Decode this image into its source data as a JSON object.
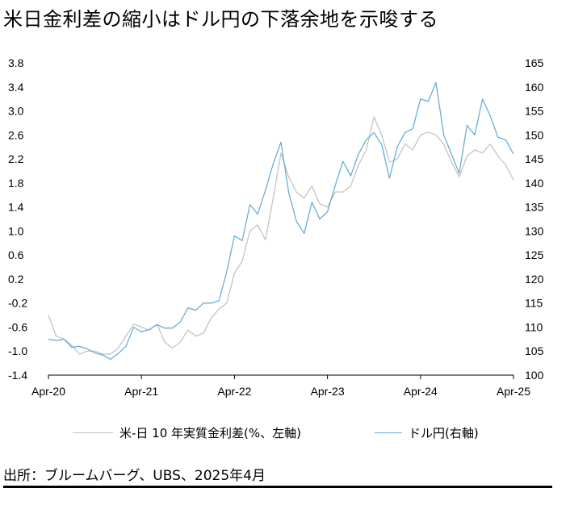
{
  "title": "米日金利差の縮小はドル円の下落余地を示唆する",
  "source": "出所：ブルームバーグ、UBS、2025年4月",
  "chart_data": {
    "type": "line",
    "title": "米日金利差の縮小はドル円の下落余地を示唆する",
    "x_ticks": [
      "Apr-20",
      "Apr-21",
      "Apr-22",
      "Apr-23",
      "Apr-24",
      "Apr-25"
    ],
    "x_range": [
      "2020-04",
      "2025-04"
    ],
    "left_axis": {
      "ticks": [
        "3.8",
        "3.4",
        "3.0",
        "2.6",
        "2.2",
        "1.8",
        "1.4",
        "1.0",
        "0.6",
        "0.2",
        "-0.2",
        "-0.6",
        "-1.0",
        "-1.4"
      ],
      "range": [
        -1.4,
        3.8
      ]
    },
    "right_axis": {
      "ticks": [
        "165",
        "160",
        "155",
        "150",
        "145",
        "140",
        "135",
        "130",
        "125",
        "120",
        "115",
        "110",
        "105",
        "100"
      ],
      "range": [
        100,
        165
      ]
    },
    "grid": false,
    "legend_position": "bottom",
    "series": [
      {
        "name": "米-日 10 年実質金利差(%、左軸)",
        "axis": "left",
        "color": "#c4c4c4",
        "points": [
          [
            "2020-04",
            -0.4
          ],
          [
            "2020-05",
            -0.75
          ],
          [
            "2020-06",
            -0.8
          ],
          [
            "2020-07",
            -0.9
          ],
          [
            "2020-08",
            -1.05
          ],
          [
            "2020-09",
            -1.0
          ],
          [
            "2020-10",
            -1.0
          ],
          [
            "2020-11",
            -1.05
          ],
          [
            "2020-12",
            -1.05
          ],
          [
            "2021-01",
            -0.95
          ],
          [
            "2021-02",
            -0.75
          ],
          [
            "2021-03",
            -0.55
          ],
          [
            "2021-04",
            -0.6
          ],
          [
            "2021-05",
            -0.65
          ],
          [
            "2021-06",
            -0.55
          ],
          [
            "2021-07",
            -0.85
          ],
          [
            "2021-08",
            -0.95
          ],
          [
            "2021-09",
            -0.85
          ],
          [
            "2021-10",
            -0.65
          ],
          [
            "2021-11",
            -0.75
          ],
          [
            "2021-12",
            -0.7
          ],
          [
            "2022-01",
            -0.45
          ],
          [
            "2022-02",
            -0.3
          ],
          [
            "2022-03",
            -0.2
          ],
          [
            "2022-04",
            0.3
          ],
          [
            "2022-05",
            0.5
          ],
          [
            "2022-06",
            1.0
          ],
          [
            "2022-07",
            1.1
          ],
          [
            "2022-08",
            0.85
          ],
          [
            "2022-09",
            1.55
          ],
          [
            "2022-10",
            2.3
          ],
          [
            "2022-11",
            1.9
          ],
          [
            "2022-12",
            1.65
          ],
          [
            "2023-01",
            1.55
          ],
          [
            "2023-02",
            1.75
          ],
          [
            "2023-03",
            1.45
          ],
          [
            "2023-04",
            1.4
          ],
          [
            "2023-05",
            1.65
          ],
          [
            "2023-06",
            1.65
          ],
          [
            "2023-07",
            1.75
          ],
          [
            "2023-08",
            2.1
          ],
          [
            "2023-09",
            2.35
          ],
          [
            "2023-10",
            2.9
          ],
          [
            "2023-11",
            2.6
          ],
          [
            "2023-12",
            2.15
          ],
          [
            "2024-01",
            2.2
          ],
          [
            "2024-02",
            2.45
          ],
          [
            "2024-03",
            2.35
          ],
          [
            "2024-04",
            2.6
          ],
          [
            "2024-05",
            2.65
          ],
          [
            "2024-06",
            2.6
          ],
          [
            "2024-07",
            2.45
          ],
          [
            "2024-08",
            2.15
          ],
          [
            "2024-09",
            1.9
          ],
          [
            "2024-10",
            2.25
          ],
          [
            "2024-11",
            2.35
          ],
          [
            "2024-12",
            2.3
          ],
          [
            "2025-01",
            2.45
          ],
          [
            "2025-02",
            2.25
          ],
          [
            "2025-03",
            2.1
          ],
          [
            "2025-04",
            1.85
          ]
        ]
      },
      {
        "name": "ドル円(右軸)",
        "axis": "right",
        "color": "#6aaed6",
        "points": [
          [
            "2020-04",
            107.5
          ],
          [
            "2020-05",
            107.2
          ],
          [
            "2020-06",
            107.5
          ],
          [
            "2020-07",
            105.8
          ],
          [
            "2020-08",
            106.0
          ],
          [
            "2020-09",
            105.5
          ],
          [
            "2020-10",
            104.6
          ],
          [
            "2020-11",
            104.2
          ],
          [
            "2020-12",
            103.3
          ],
          [
            "2021-01",
            104.5
          ],
          [
            "2021-02",
            106.0
          ],
          [
            "2021-03",
            110.0
          ],
          [
            "2021-04",
            109.0
          ],
          [
            "2021-05",
            109.5
          ],
          [
            "2021-06",
            110.5
          ],
          [
            "2021-07",
            109.8
          ],
          [
            "2021-08",
            109.8
          ],
          [
            "2021-09",
            111.0
          ],
          [
            "2021-10",
            114.0
          ],
          [
            "2021-11",
            113.5
          ],
          [
            "2021-12",
            115.0
          ],
          [
            "2022-01",
            115.0
          ],
          [
            "2022-02",
            115.5
          ],
          [
            "2022-03",
            121.5
          ],
          [
            "2022-04",
            129.0
          ],
          [
            "2022-05",
            128.0
          ],
          [
            "2022-06",
            135.5
          ],
          [
            "2022-07",
            133.5
          ],
          [
            "2022-08",
            138.5
          ],
          [
            "2022-09",
            144.0
          ],
          [
            "2022-10",
            148.5
          ],
          [
            "2022-11",
            138.0
          ],
          [
            "2022-12",
            132.0
          ],
          [
            "2023-01",
            129.5
          ],
          [
            "2023-02",
            136.0
          ],
          [
            "2023-03",
            132.5
          ],
          [
            "2023-04",
            134.0
          ],
          [
            "2023-05",
            139.5
          ],
          [
            "2023-06",
            144.5
          ],
          [
            "2023-07",
            141.5
          ],
          [
            "2023-08",
            146.0
          ],
          [
            "2023-09",
            149.0
          ],
          [
            "2023-10",
            150.5
          ],
          [
            "2023-11",
            148.0
          ],
          [
            "2023-12",
            141.0
          ],
          [
            "2024-01",
            147.5
          ],
          [
            "2024-02",
            150.5
          ],
          [
            "2024-03",
            151.3
          ],
          [
            "2024-04",
            157.5
          ],
          [
            "2024-05",
            157.0
          ],
          [
            "2024-06",
            160.9
          ],
          [
            "2024-07",
            150.0
          ],
          [
            "2024-08",
            146.0
          ],
          [
            "2024-09",
            142.0
          ],
          [
            "2024-10",
            152.0
          ],
          [
            "2024-11",
            150.0
          ],
          [
            "2024-12",
            157.5
          ],
          [
            "2025-01",
            154.0
          ],
          [
            "2025-02",
            149.5
          ],
          [
            "2025-03",
            149.0
          ],
          [
            "2025-04",
            146.0
          ]
        ]
      }
    ]
  }
}
